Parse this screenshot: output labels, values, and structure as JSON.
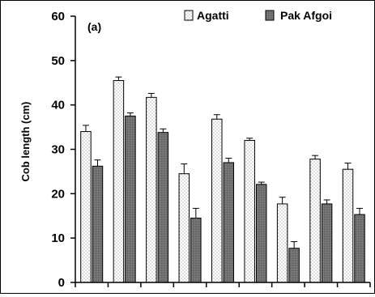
{
  "chart_data": {
    "type": "bar",
    "panel_label": "(a)",
    "ylabel": "Cob length (cm)",
    "xlabel": "",
    "ylim": [
      0,
      60
    ],
    "yticks": [
      0,
      10,
      20,
      30,
      40,
      50,
      60
    ],
    "grid": false,
    "legend_position": "top-right",
    "categories": [
      "",
      "",
      "",
      "",
      "",
      "",
      "",
      "",
      ""
    ],
    "series": [
      {
        "name": "Agatti",
        "pattern": "dotted-white",
        "values": [
          34.0,
          45.5,
          41.7,
          24.5,
          36.8,
          32.0,
          17.7,
          27.8,
          25.5
        ],
        "errors": [
          1.4,
          0.8,
          0.9,
          2.2,
          1.0,
          0.5,
          1.5,
          0.8,
          1.4
        ]
      },
      {
        "name": "Pak Afgoi",
        "pattern": "dark-gray",
        "values": [
          26.2,
          37.5,
          33.8,
          14.5,
          27.0,
          22.1,
          7.7,
          17.7,
          15.3
        ],
        "errors": [
          1.4,
          0.7,
          0.8,
          2.2,
          1.0,
          0.5,
          1.5,
          0.9,
          1.4
        ]
      }
    ]
  }
}
